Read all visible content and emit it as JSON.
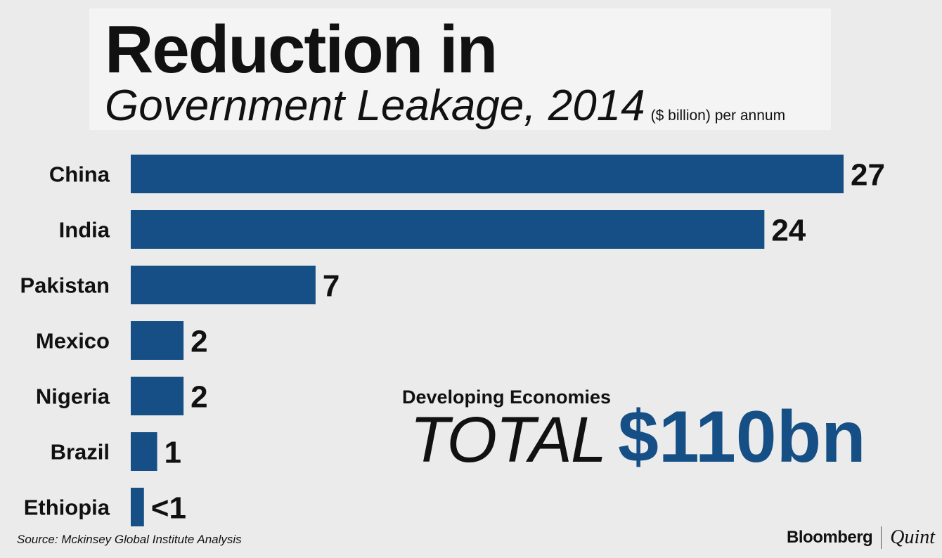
{
  "header": {
    "title_line1": "Reduction in",
    "title_line2": "Government Leakage, 2014",
    "unit": "($ billion) per annum"
  },
  "chart_data": {
    "type": "bar",
    "orientation": "horizontal",
    "title": "Reduction in Government Leakage, 2014",
    "unit": "($ billion) per annum",
    "categories": [
      "China",
      "India",
      "Pakistan",
      "Mexico",
      "Nigeria",
      "Brazil",
      "Ethiopia"
    ],
    "values": [
      27,
      24,
      7,
      2,
      2,
      1,
      0.5
    ],
    "value_labels": [
      "27",
      "24",
      "7",
      "2",
      "2",
      "1",
      "<1"
    ],
    "xlim": [
      0,
      27
    ],
    "grid": false,
    "legend": "none",
    "bar_color": "#154f85"
  },
  "total": {
    "caption": "Developing Economies",
    "word": "TOTAL",
    "value": "$110bn",
    "color": "#154f85"
  },
  "footer": {
    "source": "Source: Mckinsey Global Institute Analysis",
    "brand_primary": "Bloomberg",
    "brand_secondary": "Quint"
  }
}
